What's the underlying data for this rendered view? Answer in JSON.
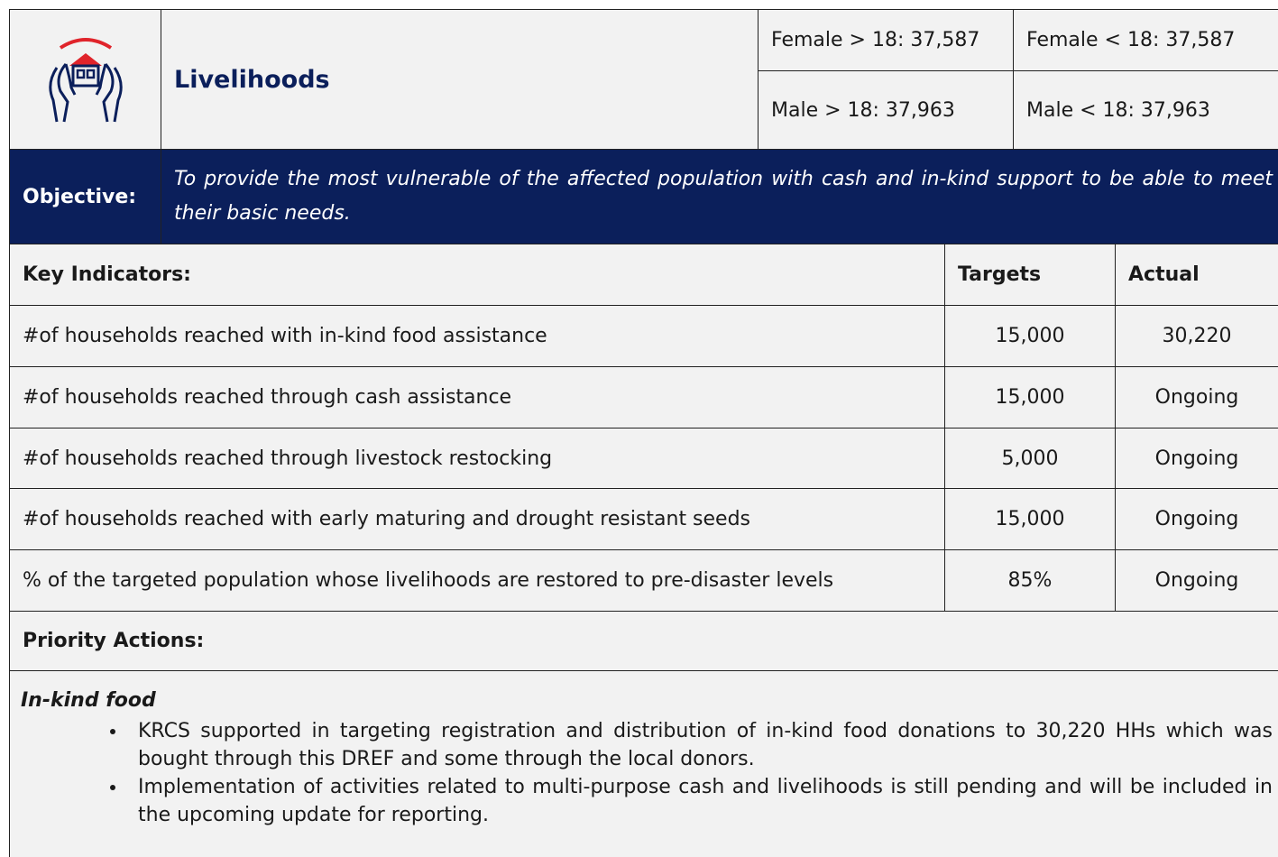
{
  "header": {
    "title": "Livelihoods",
    "demographics": [
      [
        "Female > 18: 37,587",
        "Female < 18: 37,587"
      ],
      [
        "Male > 18: 37,963",
        "Male < 18: 37,963"
      ]
    ]
  },
  "objective": {
    "label": "Objective:",
    "text": "To provide the most vulnerable of the affected population with cash and in-kind support to be able to meet their basic needs."
  },
  "table": {
    "header": [
      "Key Indicators:",
      "Targets",
      "Actual"
    ],
    "rows": [
      [
        "#of households reached with in-kind food assistance",
        "15,000",
        "30,220"
      ],
      [
        "#of households reached through cash assistance",
        "15,000",
        "Ongoing"
      ],
      [
        "#of households reached through livestock restocking",
        "5,000",
        "Ongoing"
      ],
      [
        "#of households reached with early maturing and drought resistant seeds",
        "15,000",
        "Ongoing"
      ],
      [
        "% of the targeted population whose livelihoods are restored to pre-disaster levels",
        "85%",
        "Ongoing"
      ]
    ]
  },
  "priority": {
    "title": "Priority Actions:",
    "subtitle": "In-kind food",
    "bullets": [
      "KRCS supported in targeting registration and distribution of in-kind food donations to 30,220 HHs which was bought through this DREF and some through the local donors.",
      "Implementation of activities related to multi-purpose cash and livelihoods is still pending and will be included in the upcoming update for reporting."
    ]
  }
}
